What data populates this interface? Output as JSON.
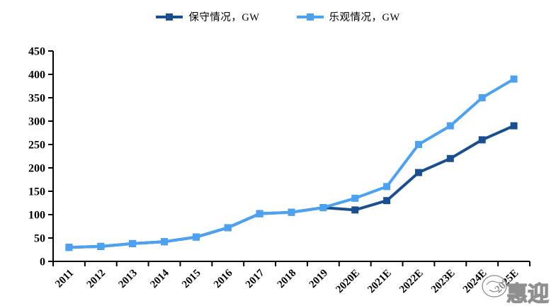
{
  "legend": {
    "items": [
      {
        "label": "保守情况，GW",
        "color": "#1A4F8F"
      },
      {
        "label": "乐观情况，GW",
        "color": "#4DA1F1"
      }
    ]
  },
  "chart_data": {
    "type": "line",
    "categories": [
      "2011",
      "2012",
      "2013",
      "2014",
      "2015",
      "2016",
      "2017",
      "2018",
      "2019",
      "2020E",
      "2021E",
      "2022E",
      "2023E",
      "2024E",
      "2025E"
    ],
    "series": [
      {
        "name": "保守情况，GW",
        "color": "#1A4F8F",
        "values": [
          30,
          32,
          38,
          42,
          52,
          72,
          102,
          105,
          115,
          110,
          130,
          190,
          220,
          260,
          290
        ]
      },
      {
        "name": "乐观情况，GW",
        "color": "#4DA1F1",
        "values": [
          30,
          32,
          38,
          42,
          52,
          72,
          102,
          105,
          115,
          135,
          160,
          250,
          290,
          350,
          390
        ]
      }
    ],
    "title": "",
    "xlabel": "",
    "ylabel": "",
    "ylim": [
      0,
      450
    ],
    "ytick_step": 50,
    "yticks": [
      "0",
      "50",
      "100",
      "150",
      "200",
      "250",
      "300",
      "350",
      "400",
      "450"
    ],
    "grid": false,
    "legend_position": "top-center",
    "marker": "square",
    "axis_color": "#000000"
  },
  "watermark": {
    "text": "惠迎"
  }
}
